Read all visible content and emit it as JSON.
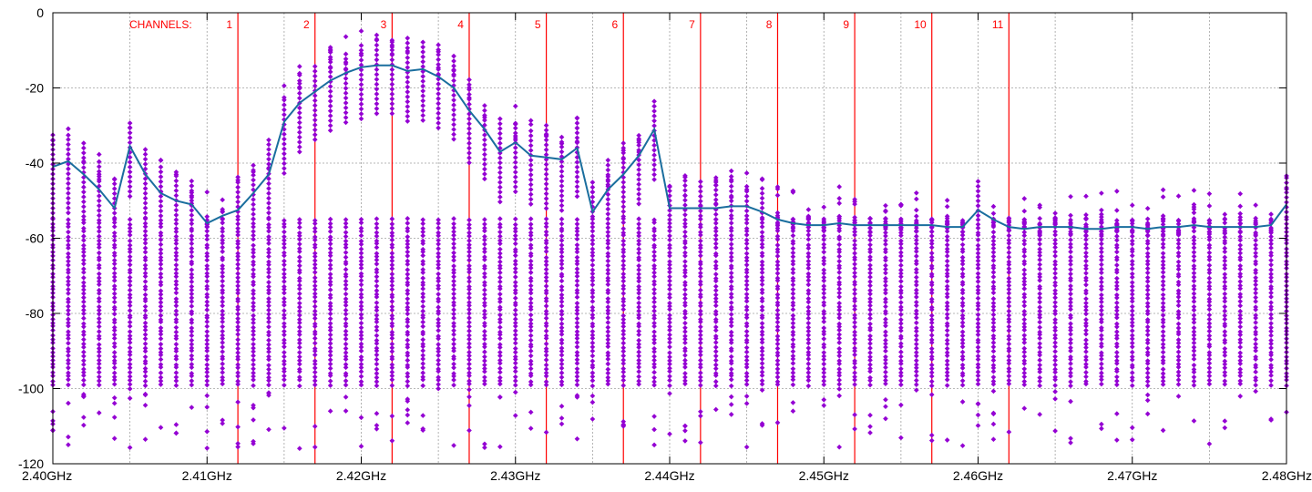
{
  "chart_data": {
    "type": "scatter",
    "title": "",
    "xlabel": "",
    "ylabel": "",
    "xlim": [
      2.4,
      2.48
    ],
    "ylim": [
      -120,
      0
    ],
    "grid": true,
    "x_ticks": [
      {
        "value": 2.4,
        "label": "2.40GHz"
      },
      {
        "value": 2.41,
        "label": "2.41GHz"
      },
      {
        "value": 2.42,
        "label": "2.42GHz"
      },
      {
        "value": 2.43,
        "label": "2.43GHz"
      },
      {
        "value": 2.44,
        "label": "2.44GHz"
      },
      {
        "value": 2.45,
        "label": "2.45GHz"
      },
      {
        "value": 2.46,
        "label": "2.46GHz"
      },
      {
        "value": 2.47,
        "label": "2.47GHz"
      },
      {
        "value": 2.48,
        "label": "2.48GHz"
      }
    ],
    "y_ticks": [
      0,
      -20,
      -40,
      -60,
      -80,
      -100,
      -120
    ],
    "channels_label": "CHANNELS:",
    "channels": [
      {
        "label": "1",
        "freq": 2.412
      },
      {
        "label": "2",
        "freq": 2.417
      },
      {
        "label": "3",
        "freq": 2.422
      },
      {
        "label": "4",
        "freq": 2.427
      },
      {
        "label": "5",
        "freq": 2.432
      },
      {
        "label": "6",
        "freq": 2.437
      },
      {
        "label": "7",
        "freq": 2.442
      },
      {
        "label": "8",
        "freq": 2.447
      },
      {
        "label": "9",
        "freq": 2.452
      },
      {
        "label": "10",
        "freq": 2.457
      },
      {
        "label": "11",
        "freq": 2.462
      }
    ],
    "colors": {
      "scatter": "#9400d3",
      "average_line": "#1a6e9e",
      "channel_line": "#ff0000",
      "grid": "#a0a0a0"
    },
    "sweep": {
      "x": [
        2.4,
        2.401,
        2.402,
        2.403,
        2.404,
        2.405,
        2.406,
        2.407,
        2.408,
        2.409,
        2.41,
        2.411,
        2.412,
        2.413,
        2.414,
        2.415,
        2.416,
        2.417,
        2.418,
        2.419,
        2.42,
        2.421,
        2.422,
        2.423,
        2.424,
        2.425,
        2.426,
        2.427,
        2.428,
        2.429,
        2.43,
        2.431,
        2.432,
        2.433,
        2.434,
        2.435,
        2.436,
        2.437,
        2.438,
        2.439,
        2.44,
        2.441,
        2.442,
        2.443,
        2.444,
        2.445,
        2.446,
        2.447,
        2.448,
        2.449,
        2.45,
        2.451,
        2.452,
        2.453,
        2.454,
        2.455,
        2.456,
        2.457,
        2.458,
        2.459,
        2.46,
        2.461,
        2.462,
        2.463,
        2.464,
        2.465,
        2.466,
        2.467,
        2.468,
        2.469,
        2.47,
        2.471,
        2.472,
        2.473,
        2.474,
        2.475,
        2.476,
        2.477,
        2.478,
        2.479,
        2.48
      ],
      "average": [
        -41,
        -39.5,
        -43,
        -47,
        -52,
        -35.5,
        -43,
        -48,
        -50,
        -51,
        -56,
        -54,
        -52.5,
        -48,
        -43,
        -29,
        -24,
        -21,
        -18,
        -16,
        -14.5,
        -14,
        -14,
        -15.5,
        -15,
        -17,
        -20,
        -26,
        -31,
        -37,
        -34.5,
        -38,
        -38.5,
        -39,
        -36,
        -53,
        -47,
        -43,
        -38,
        -31,
        -52,
        -52,
        -52,
        -52,
        -51.5,
        -51.5,
        -53,
        -55,
        -56,
        -56.5,
        -56.5,
        -56,
        -56.5,
        -56.5,
        -56.5,
        -56.5,
        -56.5,
        -56.5,
        -57,
        -57,
        -52.5,
        -55,
        -57,
        -57.5,
        -57,
        -57,
        -57,
        -57.5,
        -57.5,
        -57,
        -57,
        -57.5,
        -57,
        -57,
        -56.5,
        -57,
        -57,
        -57,
        -57,
        -56.5,
        -51
      ],
      "noise_floor_top": -55,
      "noise_floor_bottom": -100
    }
  }
}
